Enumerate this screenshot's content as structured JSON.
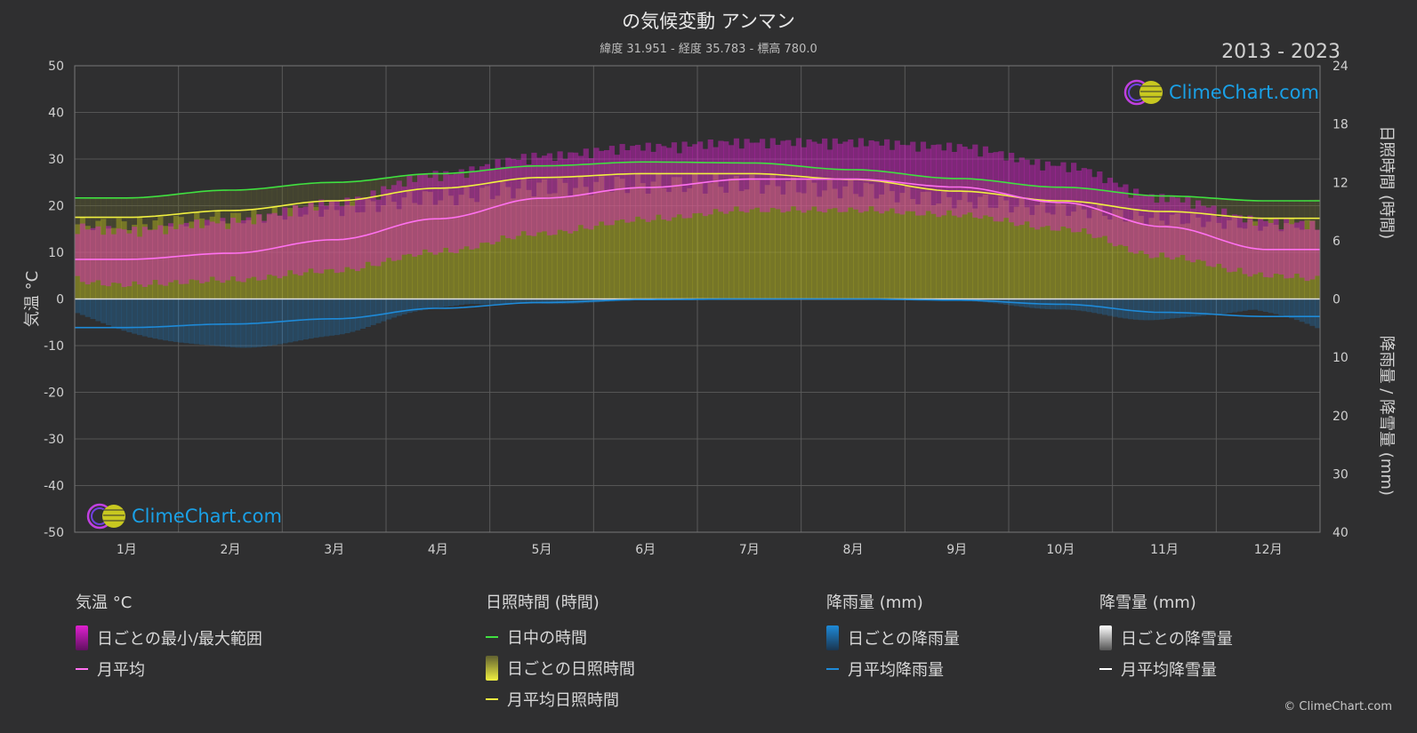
{
  "title": "の気候変動 アンマン",
  "subtitle": "緯度 31.951 - 経度 35.783 - 標高 780.0",
  "year_range": "2013 - 2023",
  "brand": "ClimeChart.com",
  "copyright": "© ClimeChart.com",
  "colors": {
    "background": "#2f2f30",
    "temp_range": "#e020d0",
    "temp_avg": "#ff70f0",
    "daylight": "#40e040",
    "sunshine_daily": "#b0b020",
    "sunshine_avg": "#f0f040",
    "rain": "#1e8ad8",
    "snow": "#ffffff"
  },
  "legend": {
    "temperature": {
      "title": "気温 °C",
      "range": "日ごとの最小/最大範囲",
      "avg": "月平均"
    },
    "sunshine": {
      "title": "日照時間 (時間)",
      "daylight": "日中の時間",
      "daily": "日ごとの日照時間",
      "avg": "月平均日照時間"
    },
    "rain": {
      "title": "降雨量 (mm)",
      "daily": "日ごとの降雨量",
      "avg": "月平均降雨量"
    },
    "snow": {
      "title": "降雪量 (mm)",
      "daily": "日ごとの降雪量",
      "avg": "月平均降雪量"
    }
  },
  "chart_data": {
    "type": "line",
    "categories": [
      "1月",
      "2月",
      "3月",
      "4月",
      "5月",
      "6月",
      "7月",
      "8月",
      "9月",
      "10月",
      "11月",
      "12月"
    ],
    "y_left": {
      "label": "気温 °C",
      "range": [
        -50,
        50
      ],
      "ticks": [
        50,
        40,
        30,
        20,
        10,
        0,
        -10,
        -20,
        -30,
        -40,
        -50
      ]
    },
    "y_right_top": {
      "label": "日照時間 (時間)",
      "range": [
        0,
        24
      ],
      "ticks": [
        24,
        18,
        12,
        6,
        0
      ]
    },
    "y_right_bottom": {
      "label": "降雨量 / 降雪量 (mm)",
      "range": [
        0,
        40
      ],
      "ticks": [
        10,
        20,
        30,
        40
      ]
    },
    "grid": true,
    "series": [
      {
        "name": "日中の時間",
        "axis": "sunshine_hours",
        "values": [
          10.4,
          11.2,
          12.0,
          12.9,
          13.7,
          14.1,
          14.0,
          13.3,
          12.4,
          11.5,
          10.6,
          10.1
        ]
      },
      {
        "name": "月平均日照時間",
        "axis": "sunshine_hours",
        "values": [
          8.4,
          9.1,
          10.1,
          11.4,
          12.5,
          12.9,
          12.9,
          12.3,
          11.1,
          10.1,
          9.0,
          8.3
        ]
      },
      {
        "name": "月平均",
        "axis": "temperature_c",
        "values": [
          8.5,
          9.8,
          12.7,
          17.2,
          21.6,
          23.9,
          25.7,
          25.7,
          24.0,
          20.7,
          15.5,
          10.6
        ]
      },
      {
        "name": "月平均降雨量",
        "axis": "precip_mm",
        "values": [
          4.9,
          4.3,
          3.4,
          1.6,
          0.6,
          0.1,
          0.0,
          0.0,
          0.2,
          0.9,
          2.3,
          3.0
        ]
      },
      {
        "name": "月平均降雪量",
        "axis": "precip_mm",
        "values": [
          0.0,
          0.0,
          0.0,
          0.0,
          0.0,
          0.0,
          0.0,
          0.0,
          0.0,
          0.0,
          0.0,
          0.0
        ]
      }
    ],
    "daily_range_monthly": {
      "temp_min": [
        4,
        5,
        7,
        11,
        15,
        18,
        20,
        20,
        19,
        16,
        10,
        6
      ],
      "temp_max": [
        13,
        15,
        19,
        25,
        29,
        31,
        32,
        32,
        31,
        27,
        20,
        15
      ]
    }
  }
}
